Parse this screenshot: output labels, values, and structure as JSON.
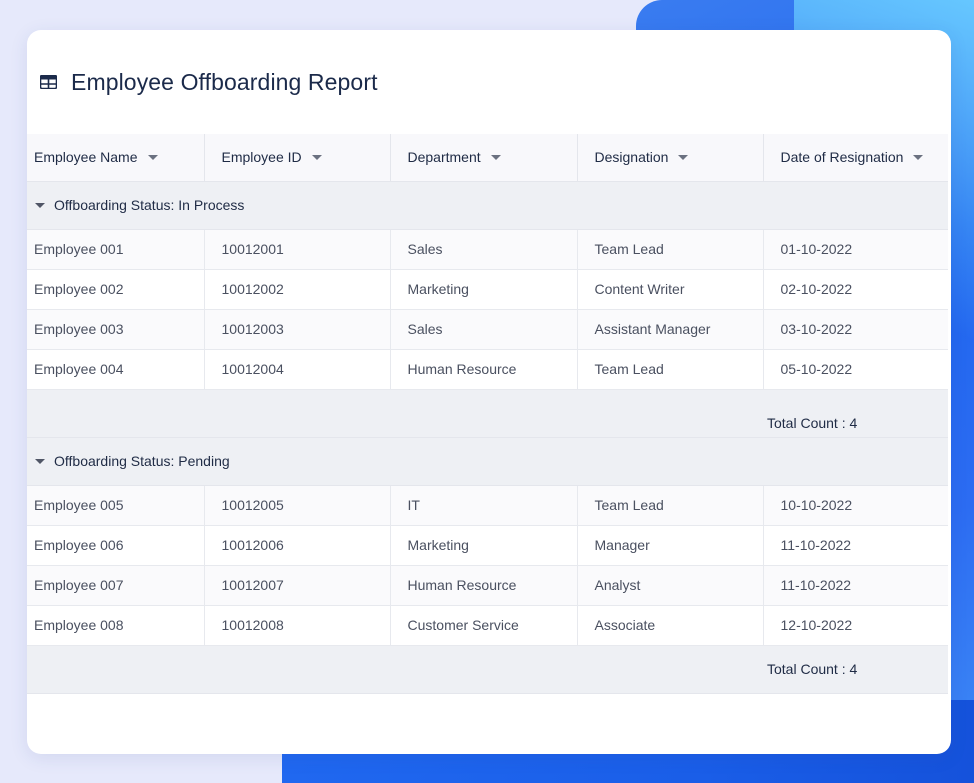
{
  "report": {
    "title": "Employee Offboarding Report",
    "title_icon": "table-icon"
  },
  "columns": [
    {
      "label": "Employee Name"
    },
    {
      "label": "Employee ID"
    },
    {
      "label": "Department"
    },
    {
      "label": "Designation"
    },
    {
      "label": "Date of Resignation"
    }
  ],
  "groups": [
    {
      "label": "Offboarding Status: In Process",
      "total": "Total Count : 4",
      "rows": [
        [
          "Employee 001",
          "10012001",
          "Sales",
          "Team Lead",
          "01-10-2022"
        ],
        [
          "Employee 002",
          "10012002",
          "Marketing",
          "Content Writer",
          "02-10-2022"
        ],
        [
          "Employee 003",
          "10012003",
          "Sales",
          "Assistant Manager",
          "03-10-2022"
        ],
        [
          "Employee 004",
          "10012004",
          "Human Resource",
          "Team Lead",
          "05-10-2022"
        ]
      ]
    },
    {
      "label": "Offboarding Status: Pending",
      "total": "Total Count : 4",
      "rows": [
        [
          "Employee 005",
          "10012005",
          "IT",
          "Team Lead",
          "10-10-2022"
        ],
        [
          "Employee 006",
          "10012006",
          "Marketing",
          "Manager",
          "11-10-2022"
        ],
        [
          "Employee 007",
          "10012007",
          "Human Resource",
          "Analyst",
          "11-10-2022"
        ],
        [
          "Employee 008",
          "10012008",
          "Customer Service",
          "Associate",
          "12-10-2022"
        ]
      ]
    }
  ],
  "colors": {
    "background": "#e6e9fb",
    "accent_blue": "#1f66ee",
    "header_bg": "#f8f8fb",
    "group_bg": "#eef0f4",
    "title_text": "#1b2a4a"
  }
}
